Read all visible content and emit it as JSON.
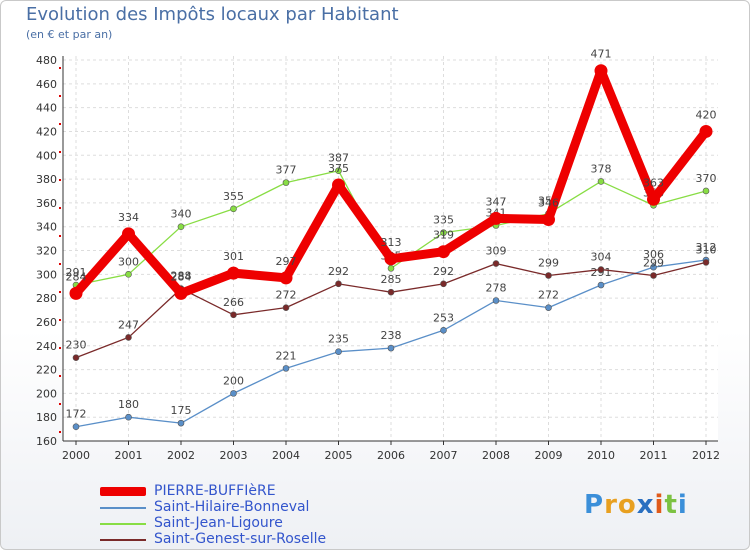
{
  "header": {
    "title": "Evolution des Impôts locaux par Habitant",
    "subtitle": "(en € et par an)"
  },
  "brand": {
    "logo_text": "Proxiti"
  },
  "chart_data": {
    "type": "line",
    "title": "Evolution des Impôts locaux par Habitant",
    "subtitle": "(en € et par an)",
    "xlabel": "",
    "ylabel": "",
    "ylim": [
      160,
      480
    ],
    "yticks": [
      160,
      180,
      200,
      220,
      240,
      260,
      280,
      300,
      320,
      340,
      360,
      380,
      400,
      420,
      440,
      460,
      480
    ],
    "grid": true,
    "legend_position": "bottom-left",
    "categories": [
      "2000",
      "2001",
      "2002",
      "2003",
      "2004",
      "2005",
      "2006",
      "2007",
      "2008",
      "2009",
      "2010",
      "2011",
      "2012"
    ],
    "series": [
      {
        "name": "PIERRE-BUFFIèRE",
        "color": "#ee0000",
        "values": [
          284,
          334,
          284,
          301,
          297,
          375,
          313,
          319,
          347,
          346,
          471,
          363,
          420
        ]
      },
      {
        "name": "Saint-Hilaire-Bonneval",
        "color": "#5a8fc8",
        "values": [
          172,
          180,
          175,
          200,
          221,
          235,
          238,
          253,
          278,
          272,
          291,
          306,
          312
        ]
      },
      {
        "name": "Saint-Jean-Ligoure",
        "color": "#88dd44",
        "values": [
          291,
          300,
          340,
          355,
          377,
          387,
          305,
          335,
          341,
          351,
          378,
          358,
          370
        ]
      },
      {
        "name": "Saint-Genest-sur-Roselle",
        "color": "#7a2a2a",
        "values": [
          230,
          247,
          288,
          266,
          272,
          292,
          285,
          292,
          309,
          299,
          304,
          299,
          310
        ]
      }
    ]
  }
}
